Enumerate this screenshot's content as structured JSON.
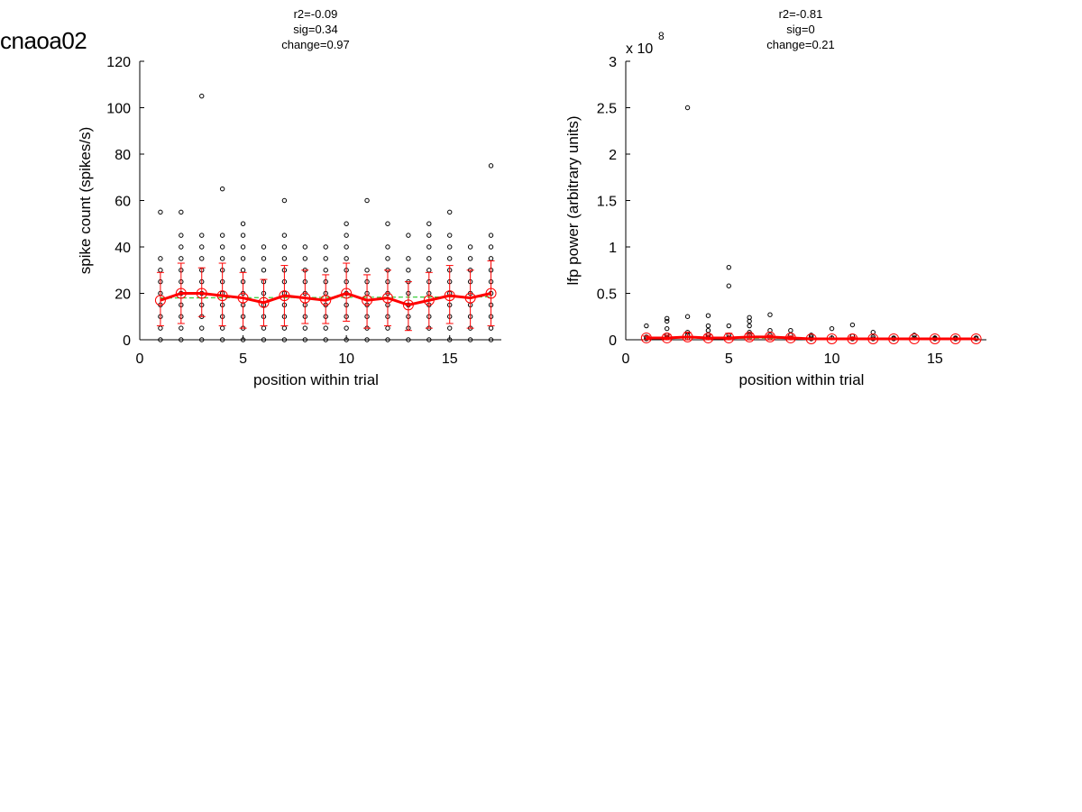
{
  "figure_title": "cnaoa02",
  "chart_data": [
    {
      "type": "scatter",
      "title_lines": [
        "r2=-0.09",
        "sig=0.34",
        "change=0.97"
      ],
      "xlabel": "position within trial",
      "ylabel": "spike count (spikes/s)",
      "xlim": [
        0,
        17.5
      ],
      "ylim": [
        0,
        120
      ],
      "xticks": [
        "0",
        "5",
        "10",
        "15"
      ],
      "yticks": [
        "0",
        "20",
        "40",
        "60",
        "80",
        "100",
        "120"
      ],
      "scatter_points": [
        [
          1,
          0
        ],
        [
          1,
          5
        ],
        [
          1,
          10
        ],
        [
          1,
          15
        ],
        [
          1,
          20
        ],
        [
          1,
          25
        ],
        [
          1,
          30
        ],
        [
          1,
          35
        ],
        [
          1,
          55
        ],
        [
          2,
          0
        ],
        [
          2,
          5
        ],
        [
          2,
          10
        ],
        [
          2,
          15
        ],
        [
          2,
          20
        ],
        [
          2,
          25
        ],
        [
          2,
          30
        ],
        [
          2,
          35
        ],
        [
          2,
          40
        ],
        [
          2,
          45
        ],
        [
          2,
          55
        ],
        [
          3,
          0
        ],
        [
          3,
          5
        ],
        [
          3,
          10
        ],
        [
          3,
          15
        ],
        [
          3,
          20
        ],
        [
          3,
          25
        ],
        [
          3,
          30
        ],
        [
          3,
          35
        ],
        [
          3,
          40
        ],
        [
          3,
          45
        ],
        [
          3,
          105
        ],
        [
          4,
          0
        ],
        [
          4,
          5
        ],
        [
          4,
          10
        ],
        [
          4,
          15
        ],
        [
          4,
          20
        ],
        [
          4,
          25
        ],
        [
          4,
          30
        ],
        [
          4,
          35
        ],
        [
          4,
          40
        ],
        [
          4,
          45
        ],
        [
          4,
          65
        ],
        [
          5,
          0
        ],
        [
          5,
          5
        ],
        [
          5,
          10
        ],
        [
          5,
          15
        ],
        [
          5,
          20
        ],
        [
          5,
          25
        ],
        [
          5,
          30
        ],
        [
          5,
          35
        ],
        [
          5,
          40
        ],
        [
          5,
          45
        ],
        [
          5,
          50
        ],
        [
          6,
          0
        ],
        [
          6,
          5
        ],
        [
          6,
          10
        ],
        [
          6,
          15
        ],
        [
          6,
          20
        ],
        [
          6,
          25
        ],
        [
          6,
          30
        ],
        [
          6,
          35
        ],
        [
          6,
          40
        ],
        [
          7,
          0
        ],
        [
          7,
          5
        ],
        [
          7,
          10
        ],
        [
          7,
          15
        ],
        [
          7,
          20
        ],
        [
          7,
          25
        ],
        [
          7,
          30
        ],
        [
          7,
          35
        ],
        [
          7,
          40
        ],
        [
          7,
          45
        ],
        [
          7,
          60
        ],
        [
          8,
          0
        ],
        [
          8,
          5
        ],
        [
          8,
          10
        ],
        [
          8,
          15
        ],
        [
          8,
          20
        ],
        [
          8,
          25
        ],
        [
          8,
          30
        ],
        [
          8,
          35
        ],
        [
          8,
          40
        ],
        [
          9,
          0
        ],
        [
          9,
          5
        ],
        [
          9,
          10
        ],
        [
          9,
          15
        ],
        [
          9,
          20
        ],
        [
          9,
          25
        ],
        [
          9,
          30
        ],
        [
          9,
          35
        ],
        [
          9,
          40
        ],
        [
          10,
          0
        ],
        [
          10,
          5
        ],
        [
          10,
          10
        ],
        [
          10,
          15
        ],
        [
          10,
          20
        ],
        [
          10,
          25
        ],
        [
          10,
          30
        ],
        [
          10,
          35
        ],
        [
          10,
          40
        ],
        [
          10,
          45
        ],
        [
          10,
          50
        ],
        [
          11,
          0
        ],
        [
          11,
          5
        ],
        [
          11,
          10
        ],
        [
          11,
          15
        ],
        [
          11,
          20
        ],
        [
          11,
          25
        ],
        [
          11,
          30
        ],
        [
          11,
          60
        ],
        [
          12,
          0
        ],
        [
          12,
          5
        ],
        [
          12,
          10
        ],
        [
          12,
          15
        ],
        [
          12,
          20
        ],
        [
          12,
          25
        ],
        [
          12,
          30
        ],
        [
          12,
          35
        ],
        [
          12,
          40
        ],
        [
          12,
          50
        ],
        [
          13,
          0
        ],
        [
          13,
          5
        ],
        [
          13,
          10
        ],
        [
          13,
          15
        ],
        [
          13,
          20
        ],
        [
          13,
          25
        ],
        [
          13,
          30
        ],
        [
          13,
          35
        ],
        [
          13,
          45
        ],
        [
          14,
          0
        ],
        [
          14,
          5
        ],
        [
          14,
          10
        ],
        [
          14,
          15
        ],
        [
          14,
          20
        ],
        [
          14,
          25
        ],
        [
          14,
          30
        ],
        [
          14,
          35
        ],
        [
          14,
          40
        ],
        [
          14,
          45
        ],
        [
          14,
          50
        ],
        [
          15,
          0
        ],
        [
          15,
          5
        ],
        [
          15,
          10
        ],
        [
          15,
          15
        ],
        [
          15,
          20
        ],
        [
          15,
          25
        ],
        [
          15,
          30
        ],
        [
          15,
          35
        ],
        [
          15,
          40
        ],
        [
          15,
          45
        ],
        [
          15,
          55
        ],
        [
          16,
          0
        ],
        [
          16,
          5
        ],
        [
          16,
          10
        ],
        [
          16,
          15
        ],
        [
          16,
          20
        ],
        [
          16,
          25
        ],
        [
          16,
          30
        ],
        [
          16,
          35
        ],
        [
          16,
          40
        ],
        [
          17,
          0
        ],
        [
          17,
          5
        ],
        [
          17,
          10
        ],
        [
          17,
          15
        ],
        [
          17,
          20
        ],
        [
          17,
          25
        ],
        [
          17,
          30
        ],
        [
          17,
          35
        ],
        [
          17,
          40
        ],
        [
          17,
          45
        ],
        [
          17,
          75
        ]
      ],
      "x": [
        1,
        2,
        3,
        4,
        5,
        6,
        7,
        8,
        9,
        10,
        11,
        12,
        13,
        14,
        15,
        16,
        17
      ],
      "mean": [
        17,
        20,
        20,
        19,
        18,
        16,
        19,
        18,
        17,
        20,
        17,
        18,
        15,
        17,
        19,
        18,
        20
      ],
      "err_low": [
        6,
        7,
        10,
        6,
        5,
        6,
        6,
        7,
        7,
        8,
        5,
        6,
        4,
        5,
        7,
        5,
        6
      ],
      "err_high": [
        29,
        33,
        31,
        33,
        29,
        26,
        32,
        30,
        28,
        33,
        28,
        30,
        25,
        29,
        32,
        30,
        34
      ],
      "trend": [
        18,
        18.5
      ],
      "colors": {
        "points": "#000000",
        "mean": "#ff0000",
        "trend": "#33cc33"
      }
    },
    {
      "type": "scatter",
      "title_lines": [
        "r2=-0.81",
        "sig=0",
        "change=0.21"
      ],
      "xlabel": "position within trial",
      "ylabel": "lfp power (arbitrary units)",
      "exponent_base": "x 10",
      "exponent_power": "8",
      "xlim": [
        0,
        17.5
      ],
      "ylim": [
        0,
        3
      ],
      "xticks": [
        "0",
        "5",
        "10",
        "15"
      ],
      "yticks": [
        "0",
        "0.5",
        "1",
        "1.5",
        "2",
        "2.5",
        "3"
      ],
      "scatter_points": [
        [
          1,
          0.15
        ],
        [
          1,
          0.03
        ],
        [
          1,
          0.01
        ],
        [
          2,
          0.23
        ],
        [
          2,
          0.2
        ],
        [
          2,
          0.12
        ],
        [
          2,
          0.05
        ],
        [
          2,
          0.02
        ],
        [
          3,
          2.5
        ],
        [
          3,
          0.25
        ],
        [
          3,
          0.08
        ],
        [
          3,
          0.05
        ],
        [
          3,
          0.02
        ],
        [
          4,
          0.26
        ],
        [
          4,
          0.15
        ],
        [
          4,
          0.1
        ],
        [
          4,
          0.05
        ],
        [
          4,
          0.02
        ],
        [
          5,
          0.78
        ],
        [
          5,
          0.58
        ],
        [
          5,
          0.15
        ],
        [
          5,
          0.05
        ],
        [
          5,
          0.02
        ],
        [
          6,
          0.24
        ],
        [
          6,
          0.2
        ],
        [
          6,
          0.15
        ],
        [
          6,
          0.08
        ],
        [
          6,
          0.05
        ],
        [
          6,
          0.02
        ],
        [
          7,
          0.27
        ],
        [
          7,
          0.1
        ],
        [
          7,
          0.05
        ],
        [
          7,
          0.02
        ],
        [
          8,
          0.1
        ],
        [
          8,
          0.05
        ],
        [
          8,
          0.02
        ],
        [
          9,
          0.05
        ],
        [
          9,
          0.03
        ],
        [
          9,
          0.01
        ],
        [
          10,
          0.12
        ],
        [
          10,
          0.02
        ],
        [
          11,
          0.16
        ],
        [
          11,
          0.04
        ],
        [
          11,
          0.01
        ],
        [
          12,
          0.08
        ],
        [
          12,
          0.03
        ],
        [
          12,
          0.01
        ],
        [
          13,
          0.02
        ],
        [
          13,
          0.01
        ],
        [
          14,
          0.05
        ],
        [
          14,
          0.02
        ],
        [
          15,
          0.02
        ],
        [
          15,
          0.01
        ],
        [
          16,
          0.02
        ],
        [
          16,
          0.01
        ],
        [
          17,
          0.02
        ],
        [
          17,
          0.01
        ]
      ],
      "x": [
        1,
        2,
        3,
        4,
        5,
        6,
        7,
        8,
        9,
        10,
        11,
        12,
        13,
        14,
        15,
        16,
        17
      ],
      "mean": [
        0.02,
        0.02,
        0.03,
        0.02,
        0.02,
        0.03,
        0.03,
        0.02,
        0.01,
        0.01,
        0.01,
        0.01,
        0.01,
        0.01,
        0.01,
        0.01,
        0.01
      ],
      "err_low": [
        0,
        0,
        0,
        0,
        0,
        0,
        0,
        0,
        0,
        0,
        0,
        0,
        0,
        0,
        0,
        0,
        0
      ],
      "err_high": [
        0.04,
        0.05,
        0.08,
        0.05,
        0.07,
        0.06,
        0.05,
        0.04,
        0.02,
        0.02,
        0.03,
        0.02,
        0.01,
        0.02,
        0.01,
        0.01,
        0.01
      ],
      "trend": [
        0.02,
        0.01
      ],
      "colors": {
        "points": "#000000",
        "mean": "#ff0000",
        "trend": "#33cc33"
      }
    }
  ]
}
